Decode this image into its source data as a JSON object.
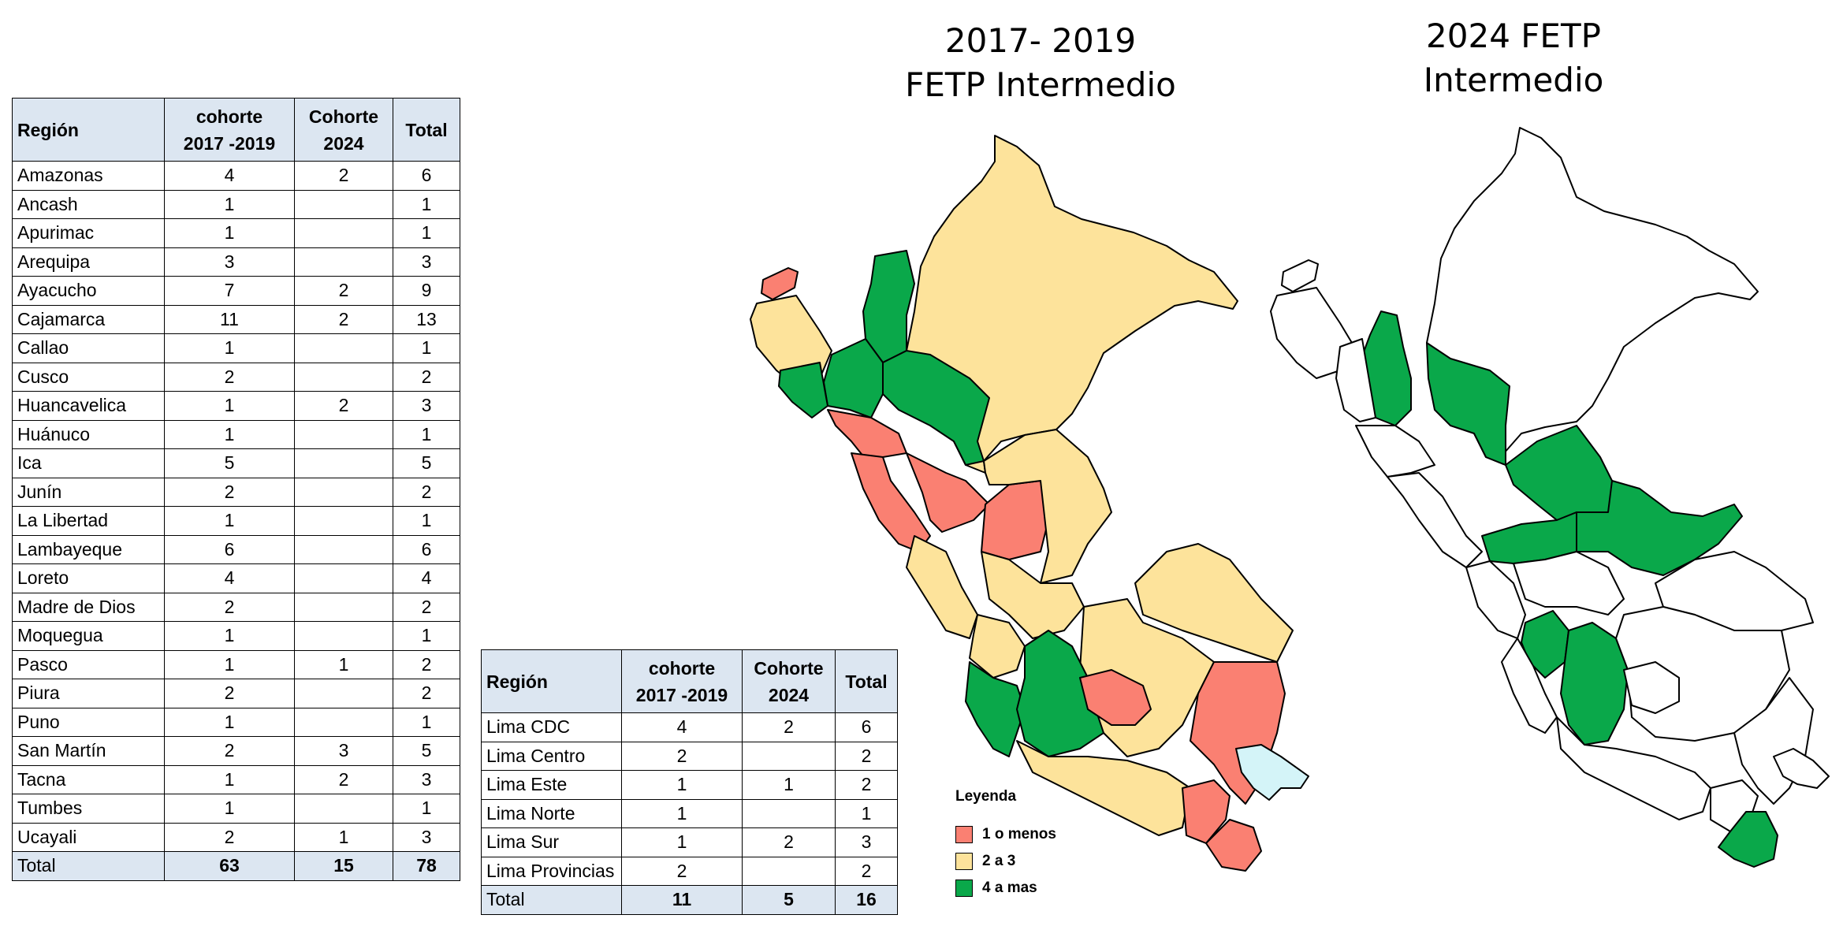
{
  "titles": {
    "map1_line1": "2017- 2019",
    "map1_line2": "FETP Intermedio",
    "map2_line1": "2024 FETP",
    "map2_line2": "Intermedio"
  },
  "regions_table": {
    "headers": {
      "region": "Región",
      "c1_line1": "cohorte",
      "c1_line2": "2017 -2019",
      "c2_line1": "Cohorte",
      "c2_line2": "2024",
      "total": "Total"
    },
    "rows": [
      {
        "region": "Amazonas",
        "c2017": "4",
        "c2024": "2",
        "total": "6"
      },
      {
        "region": "Ancash",
        "c2017": "1",
        "c2024": "",
        "total": "1"
      },
      {
        "region": "Apurimac",
        "c2017": "1",
        "c2024": "",
        "total": "1"
      },
      {
        "region": "Arequipa",
        "c2017": "3",
        "c2024": "",
        "total": "3"
      },
      {
        "region": "Ayacucho",
        "c2017": "7",
        "c2024": "2",
        "total": "9"
      },
      {
        "region": "Cajamarca",
        "c2017": "11",
        "c2024": "2",
        "total": "13"
      },
      {
        "region": "Callao",
        "c2017": "1",
        "c2024": "",
        "total": "1"
      },
      {
        "region": "Cusco",
        "c2017": "2",
        "c2024": "",
        "total": "2"
      },
      {
        "region": "Huancavelica",
        "c2017": "1",
        "c2024": "2",
        "total": "3"
      },
      {
        "region": "Huánuco",
        "c2017": "1",
        "c2024": "",
        "total": "1"
      },
      {
        "region": "Ica",
        "c2017": "5",
        "c2024": "",
        "total": "5"
      },
      {
        "region": "Junín",
        "c2017": "2",
        "c2024": "",
        "total": "2"
      },
      {
        "region": "La Libertad",
        "c2017": "1",
        "c2024": "",
        "total": "1"
      },
      {
        "region": "Lambayeque",
        "c2017": "6",
        "c2024": "",
        "total": "6"
      },
      {
        "region": "Loreto",
        "c2017": "4",
        "c2024": "",
        "total": "4"
      },
      {
        "region": "Madre de Dios",
        "c2017": "2",
        "c2024": "",
        "total": "2"
      },
      {
        "region": "Moquegua",
        "c2017": "1",
        "c2024": "",
        "total": "1"
      },
      {
        "region": "Pasco",
        "c2017": "1",
        "c2024": "1",
        "total": "2"
      },
      {
        "region": "Piura",
        "c2017": "2",
        "c2024": "",
        "total": "2"
      },
      {
        "region": "Puno",
        "c2017": "1",
        "c2024": "",
        "total": "1"
      },
      {
        "region": "San Martín",
        "c2017": "2",
        "c2024": "3",
        "total": "5"
      },
      {
        "region": "Tacna",
        "c2017": "1",
        "c2024": "2",
        "total": "3"
      },
      {
        "region": "Tumbes",
        "c2017": "1",
        "c2024": "",
        "total": "1"
      },
      {
        "region": "Ucayali",
        "c2017": "2",
        "c2024": "1",
        "total": "3"
      }
    ],
    "total_row": {
      "region": "Total",
      "c2017": "63",
      "c2024": "15",
      "total": "78"
    }
  },
  "lima_table": {
    "headers": {
      "region": "Región",
      "c1_line1": "cohorte",
      "c1_line2": "2017 -2019",
      "c2_line1": "Cohorte",
      "c2_line2": "2024",
      "total": "Total"
    },
    "rows": [
      {
        "region": "Lima CDC",
        "c2017": "4",
        "c2024": "2",
        "total": "6"
      },
      {
        "region": "Lima Centro",
        "c2017": "2",
        "c2024": "",
        "total": "2"
      },
      {
        "region": "Lima Este",
        "c2017": "1",
        "c2024": "1",
        "total": "2"
      },
      {
        "region": "Lima Norte",
        "c2017": "1",
        "c2024": "",
        "total": "1"
      },
      {
        "region": "Lima Sur",
        "c2017": "1",
        "c2024": "2",
        "total": "3"
      },
      {
        "region": "Lima Provincias",
        "c2017": "2",
        "c2024": "",
        "total": "2"
      }
    ],
    "total_row": {
      "region": "Total",
      "c2017": "11",
      "c2024": "5",
      "total": "16"
    }
  },
  "legend": {
    "title": "Leyenda",
    "items": [
      {
        "label": "1 o menos",
        "color": "#fa8072"
      },
      {
        "label": "2 a 3",
        "color": "#fde39b"
      },
      {
        "label": "4 a mas",
        "color": "#0aa84a"
      }
    ]
  },
  "colors": {
    "low": "#fa8072",
    "mid": "#fde39b",
    "high": "#0aa84a",
    "lake": "#d4f4f8",
    "none": "#ffffff",
    "header_bg": "#dce6f1"
  }
}
